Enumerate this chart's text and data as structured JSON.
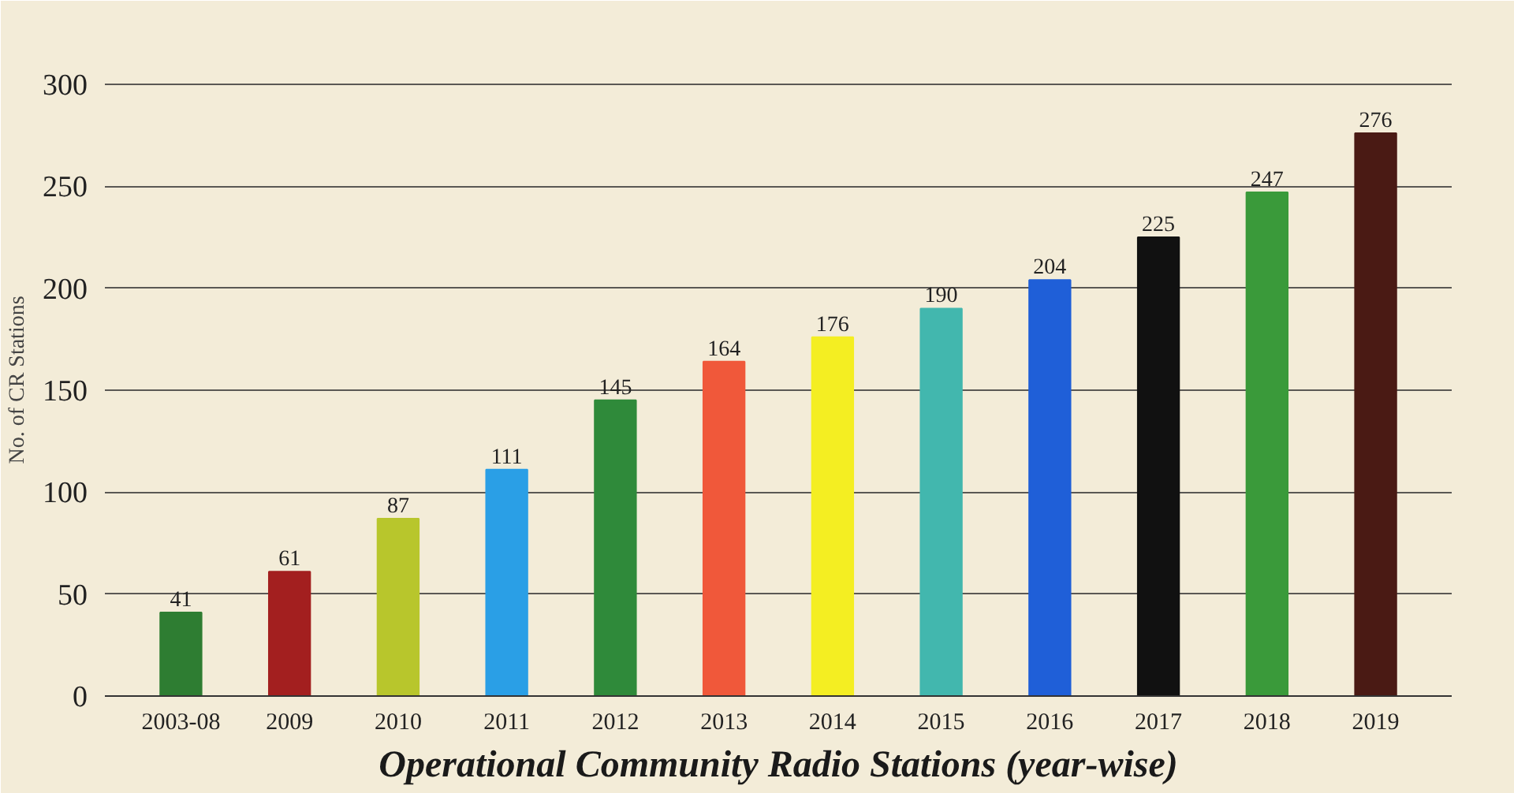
{
  "chart_data": {
    "type": "bar",
    "title": "Operational Community Radio Stations (year-wise)",
    "ylabel": "No. of CR Stations",
    "categories": [
      "2003-08",
      "2009",
      "2010",
      "2011",
      "2012",
      "2013",
      "2014",
      "2015",
      "2016",
      "2017",
      "2018",
      "2019"
    ],
    "values": [
      41,
      61,
      87,
      111,
      145,
      164,
      176,
      190,
      204,
      225,
      247,
      276
    ],
    "colors": [
      "#2e7d32",
      "#a31f1f",
      "#b8c62c",
      "#2a9fe6",
      "#2f8a3a",
      "#f0583a",
      "#f4ee22",
      "#42b7ae",
      "#1f5fd8",
      "#111111",
      "#3a9a3a",
      "#4a1a14"
    ],
    "ylim": [
      0,
      310
    ],
    "yticks": [
      0,
      50,
      100,
      150,
      200,
      250,
      300
    ],
    "grid": "y",
    "data_labels": true
  }
}
